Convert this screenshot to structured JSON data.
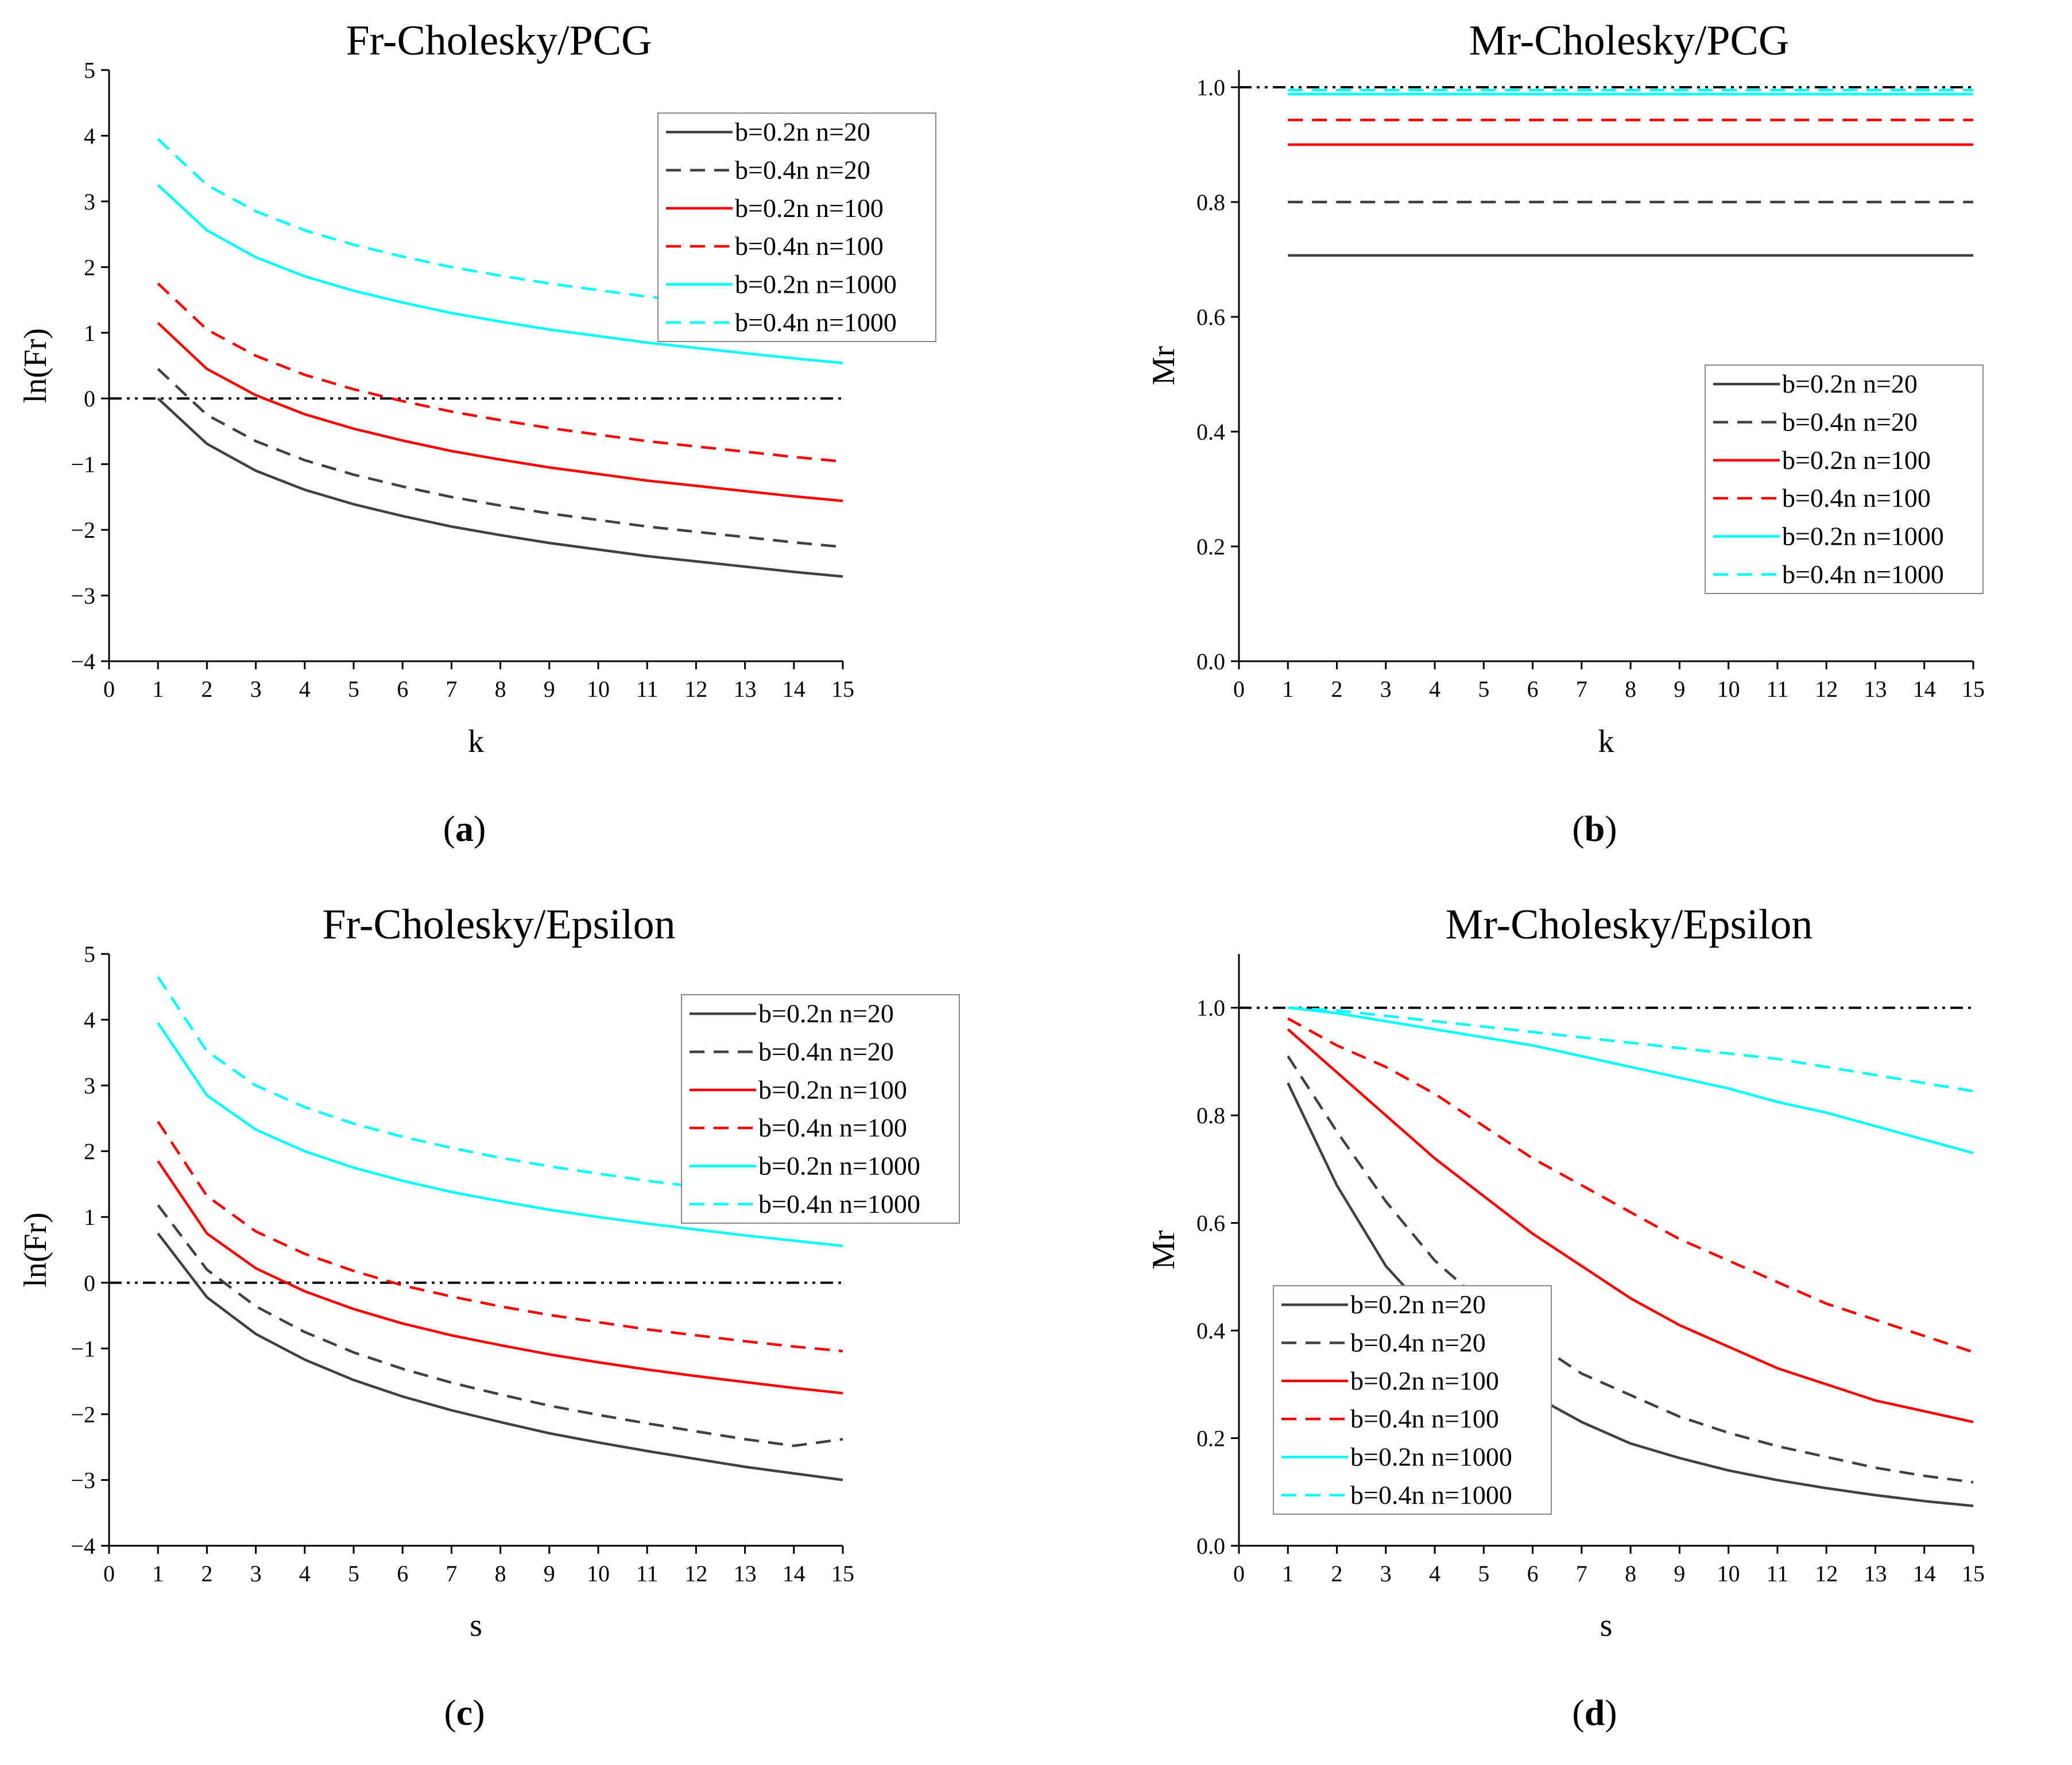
{
  "chart_data": [
    {
      "type": "line",
      "panel_label": "a",
      "title": "Fr-Cholesky/PCG",
      "xlabel": "k",
      "ylabel": "ln(Fr)",
      "xlim": [
        0,
        15
      ],
      "ylim": [
        -4,
        5
      ],
      "x_ticks": [
        0,
        1,
        2,
        3,
        4,
        5,
        6,
        7,
        8,
        9,
        10,
        11,
        12,
        13,
        14,
        15
      ],
      "y_ticks": [
        -4,
        -3,
        -2,
        -1,
        0,
        1,
        2,
        3,
        4,
        5
      ],
      "y_tick_labels": [
        "−4",
        "−3",
        "−2",
        "−1",
        "0",
        "1",
        "2",
        "3",
        "4",
        "5"
      ],
      "reference_line": 0,
      "legend_position": "top-right",
      "x": [
        1,
        2,
        3,
        4,
        5,
        6,
        7,
        8,
        9,
        10,
        11,
        12,
        13,
        14,
        15
      ],
      "series": [
        {
          "name": "b=0.2n  n=20",
          "color": "#404040",
          "dash": false,
          "values": [
            0.0,
            -0.69,
            -1.1,
            -1.39,
            -1.61,
            -1.79,
            -1.95,
            -2.08,
            -2.2,
            -2.3,
            -2.4,
            -2.48,
            -2.56,
            -2.64,
            -2.71
          ]
        },
        {
          "name": "b=0.4n  n=20",
          "color": "#404040",
          "dash": true,
          "values": [
            0.45,
            -0.25,
            -0.65,
            -0.94,
            -1.16,
            -1.34,
            -1.5,
            -1.63,
            -1.75,
            -1.85,
            -1.95,
            -2.03,
            -2.11,
            -2.19,
            -2.26
          ]
        },
        {
          "name": "b=0.2n  n=100",
          "color": "#ff0000",
          "dash": false,
          "values": [
            1.15,
            0.45,
            0.05,
            -0.24,
            -0.46,
            -0.64,
            -0.8,
            -0.93,
            -1.05,
            -1.15,
            -1.25,
            -1.33,
            -1.41,
            -1.49,
            -1.56
          ]
        },
        {
          "name": "b=0.4n  n=100",
          "color": "#ff0000",
          "dash": true,
          "values": [
            1.75,
            1.05,
            0.65,
            0.36,
            0.14,
            -0.04,
            -0.2,
            -0.33,
            -0.45,
            -0.55,
            -0.65,
            -0.73,
            -0.81,
            -0.89,
            -0.96
          ]
        },
        {
          "name": "b=0.2n  n=1000",
          "color": "#00ffff",
          "dash": false,
          "values": [
            3.25,
            2.56,
            2.15,
            1.86,
            1.64,
            1.46,
            1.3,
            1.17,
            1.05,
            0.95,
            0.85,
            0.77,
            0.69,
            0.61,
            0.54
          ]
        },
        {
          "name": "b=0.4n  n=1000",
          "color": "#00ffff",
          "dash": true,
          "values": [
            3.95,
            3.25,
            2.85,
            2.56,
            2.34,
            2.16,
            2.0,
            1.87,
            1.75,
            1.65,
            1.55,
            1.47,
            1.39,
            1.31,
            1.24
          ]
        }
      ]
    },
    {
      "type": "line",
      "panel_label": "b",
      "title": "Mr-Cholesky/PCG",
      "xlabel": "k",
      "ylabel": "Mr",
      "xlim": [
        0,
        15
      ],
      "ylim": [
        0,
        1.03
      ],
      "x_ticks": [
        0,
        1,
        2,
        3,
        4,
        5,
        6,
        7,
        8,
        9,
        10,
        11,
        12,
        13,
        14,
        15
      ],
      "y_ticks": [
        0,
        0.2,
        0.4,
        0.6,
        0.8,
        1.0
      ],
      "y_tick_labels": [
        "0.0",
        "0.2",
        "0.4",
        "0.6",
        "0.8",
        "1.0"
      ],
      "reference_line": 1.0,
      "legend_position": "lower-right",
      "x": [
        1,
        15
      ],
      "series": [
        {
          "name": "b=0.2n  n=20",
          "color": "#404040",
          "dash": false,
          "values": [
            0.707,
            0.707
          ]
        },
        {
          "name": "b=0.4n  n=20",
          "color": "#404040",
          "dash": true,
          "values": [
            0.8,
            0.8
          ]
        },
        {
          "name": "b=0.2n  n=100",
          "color": "#ff0000",
          "dash": false,
          "values": [
            0.9,
            0.9
          ]
        },
        {
          "name": "b=0.4n  n=100",
          "color": "#ff0000",
          "dash": true,
          "values": [
            0.943,
            0.943
          ]
        },
        {
          "name": "b=0.2n  n=1000",
          "color": "#00ffff",
          "dash": false,
          "values": [
            0.988,
            0.988
          ]
        },
        {
          "name": "b=0.4n  n=1000",
          "color": "#00ffff",
          "dash": true,
          "values": [
            0.995,
            0.995
          ]
        }
      ]
    },
    {
      "type": "line",
      "panel_label": "c",
      "title": "Fr-Cholesky/Epsilon",
      "xlabel": "s",
      "ylabel": "ln(Fr)",
      "xlim": [
        0,
        15
      ],
      "ylim": [
        -4,
        5
      ],
      "x_ticks": [
        0,
        1,
        2,
        3,
        4,
        5,
        6,
        7,
        8,
        9,
        10,
        11,
        12,
        13,
        14,
        15
      ],
      "y_ticks": [
        -4,
        -3,
        -2,
        -1,
        0,
        1,
        2,
        3,
        4,
        5
      ],
      "y_tick_labels": [
        "−4",
        "−3",
        "−2",
        "−1",
        "0",
        "1",
        "2",
        "3",
        "4",
        "5"
      ],
      "reference_line": 0,
      "legend_position": "top-right",
      "x": [
        1,
        2,
        3,
        4,
        5,
        6,
        7,
        8,
        9,
        10,
        11,
        12,
        13,
        14,
        15
      ],
      "series": [
        {
          "name": "b=0.2n  n=20",
          "color": "#404040",
          "dash": false,
          "values": [
            0.75,
            -0.22,
            -0.78,
            -1.17,
            -1.48,
            -1.73,
            -1.94,
            -2.12,
            -2.29,
            -2.43,
            -2.56,
            -2.68,
            -2.8,
            -2.9,
            -3.0
          ]
        },
        {
          "name": "b=0.4n  n=20",
          "color": "#404040",
          "dash": true,
          "values": [
            1.18,
            0.2,
            -0.36,
            -0.75,
            -1.06,
            -1.31,
            -1.52,
            -1.7,
            -1.87,
            -2.01,
            -2.14,
            -2.26,
            -2.38,
            -2.48,
            -2.38
          ]
        },
        {
          "name": "b=0.2n  n=100",
          "color": "#ff0000",
          "dash": false,
          "values": [
            1.85,
            0.75,
            0.22,
            -0.13,
            -0.4,
            -0.62,
            -0.8,
            -0.95,
            -1.09,
            -1.21,
            -1.32,
            -1.42,
            -1.51,
            -1.6,
            -1.68
          ]
        },
        {
          "name": "b=0.4n  n=100",
          "color": "#ff0000",
          "dash": true,
          "values": [
            2.45,
            1.32,
            0.78,
            0.44,
            0.18,
            -0.04,
            -0.21,
            -0.36,
            -0.49,
            -0.6,
            -0.71,
            -0.8,
            -0.89,
            -0.97,
            -1.04
          ]
        },
        {
          "name": "b=0.2n  n=1000",
          "color": "#00ffff",
          "dash": false,
          "values": [
            3.95,
            2.85,
            2.33,
            2.0,
            1.75,
            1.55,
            1.38,
            1.24,
            1.11,
            1.0,
            0.9,
            0.81,
            0.72,
            0.64,
            0.56
          ]
        },
        {
          "name": "b=0.4n  n=1000",
          "color": "#00ffff",
          "dash": true,
          "values": [
            4.65,
            3.52,
            3.0,
            2.67,
            2.42,
            2.22,
            2.05,
            1.9,
            1.77,
            1.66,
            1.55,
            1.46,
            1.37,
            1.29,
            1.21
          ]
        }
      ]
    },
    {
      "type": "line",
      "panel_label": "d",
      "title": "Mr-Cholesky/Epsilon",
      "xlabel": "s",
      "ylabel": "Mr",
      "xlim": [
        0,
        15
      ],
      "ylim": [
        0,
        1.1
      ],
      "x_ticks": [
        0,
        1,
        2,
        3,
        4,
        5,
        6,
        7,
        8,
        9,
        10,
        11,
        12,
        13,
        14,
        15
      ],
      "y_ticks": [
        0,
        0.2,
        0.4,
        0.6,
        0.8,
        1.0
      ],
      "y_tick_labels": [
        "0.0",
        "0.2",
        "0.4",
        "0.6",
        "0.8",
        "1.0"
      ],
      "reference_line": 1.0,
      "legend_position": "lower-left",
      "x": [
        1,
        2,
        3,
        4,
        5,
        6,
        7,
        8,
        9,
        10,
        11,
        12,
        13,
        14,
        15
      ],
      "series": [
        {
          "name": "b=0.2n  n=20",
          "color": "#404040",
          "dash": false,
          "values": [
            0.86,
            0.67,
            0.52,
            0.42,
            0.34,
            0.28,
            0.23,
            0.19,
            0.163,
            0.14,
            0.122,
            0.107,
            0.094,
            0.083,
            0.074
          ]
        },
        {
          "name": "b=0.4n  n=20",
          "color": "#404040",
          "dash": true,
          "values": [
            0.91,
            0.77,
            0.64,
            0.53,
            0.45,
            0.38,
            0.32,
            0.28,
            0.24,
            0.21,
            0.185,
            0.165,
            0.145,
            0.13,
            0.118
          ]
        },
        {
          "name": "b=0.2n  n=100",
          "color": "#ff0000",
          "dash": false,
          "values": [
            0.96,
            0.88,
            0.8,
            0.72,
            0.65,
            0.58,
            0.52,
            0.46,
            0.41,
            0.37,
            0.33,
            0.3,
            0.27,
            0.25,
            0.23
          ]
        },
        {
          "name": "b=0.4n  n=100",
          "color": "#ff0000",
          "dash": true,
          "values": [
            0.98,
            0.93,
            0.89,
            0.84,
            0.78,
            0.72,
            0.67,
            0.62,
            0.57,
            0.53,
            0.49,
            0.45,
            0.42,
            0.39,
            0.36
          ]
        },
        {
          "name": "b=0.2n  n=1000",
          "color": "#00ffff",
          "dash": false,
          "values": [
            1.0,
            0.99,
            0.975,
            0.96,
            0.945,
            0.93,
            0.91,
            0.89,
            0.87,
            0.85,
            0.825,
            0.805,
            0.78,
            0.755,
            0.73
          ]
        },
        {
          "name": "b=0.4n  n=1000",
          "color": "#00ffff",
          "dash": true,
          "values": [
            1.0,
            0.995,
            0.985,
            0.975,
            0.965,
            0.955,
            0.945,
            0.935,
            0.925,
            0.915,
            0.905,
            0.89,
            0.875,
            0.86,
            0.845
          ]
        }
      ]
    }
  ]
}
